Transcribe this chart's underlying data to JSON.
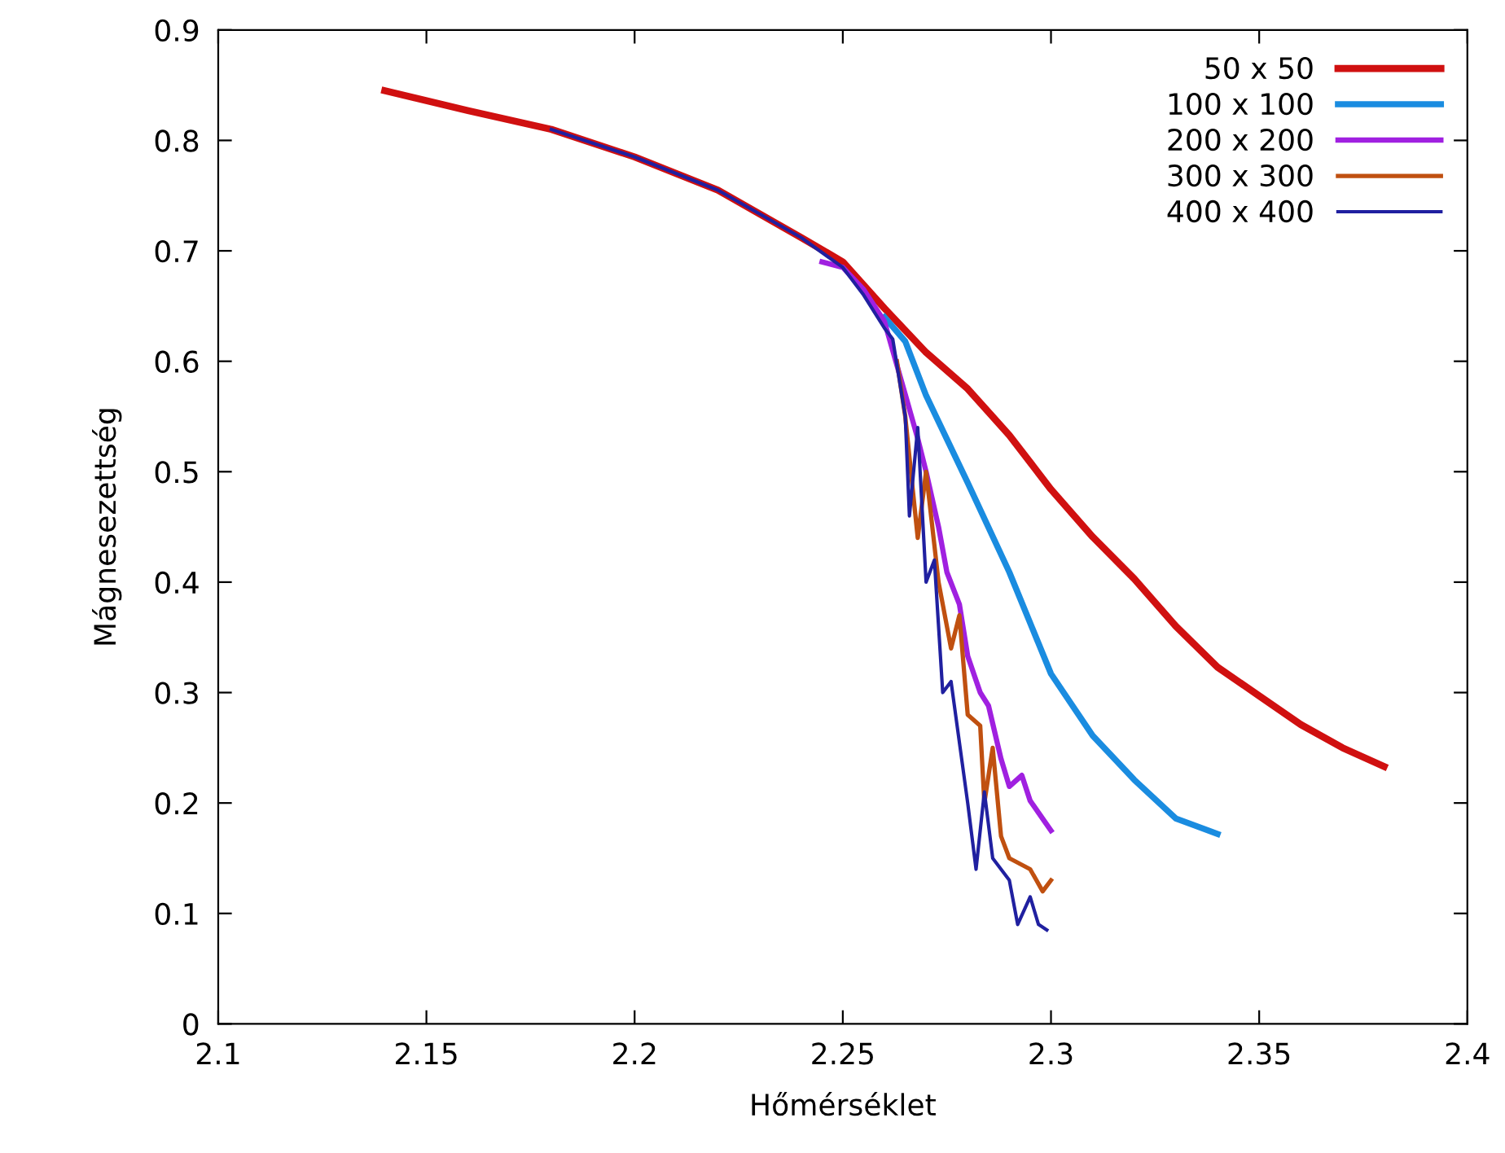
{
  "chart_data": {
    "type": "line",
    "xlabel": "Hőmérséklet",
    "ylabel": "Mágnesezettség",
    "xlim": [
      2.1,
      2.4
    ],
    "ylim": [
      0,
      0.9
    ],
    "xticks": [
      2.1,
      2.15,
      2.2,
      2.25,
      2.3,
      2.35,
      2.4
    ],
    "yticks": [
      0,
      0.1,
      0.2,
      0.3,
      0.4,
      0.5,
      0.6,
      0.7,
      0.8,
      0.9
    ],
    "grid": false,
    "legend": "top right",
    "line_style": "solid",
    "marker": "none",
    "series": [
      {
        "name": "50 x 50",
        "color": "#d01010",
        "x": [
          2.14,
          2.16,
          2.18,
          2.2,
          2.22,
          2.24,
          2.25,
          2.26,
          2.27,
          2.28,
          2.29,
          2.3,
          2.31,
          2.32,
          2.33,
          2.34,
          2.35,
          2.36,
          2.37,
          2.38
        ],
        "values": [
          0.845,
          0.827,
          0.81,
          0.785,
          0.755,
          0.712,
          0.69,
          0.648,
          0.608,
          0.575,
          0.533,
          0.484,
          0.441,
          0.403,
          0.36,
          0.323,
          0.297,
          0.271,
          0.25,
          0.233
        ]
      },
      {
        "name": "100 x 100",
        "color": "#1a8ce0",
        "x": [
          2.26,
          2.265,
          2.27,
          2.28,
          2.29,
          2.3,
          2.31,
          2.32,
          2.33,
          2.34
        ],
        "values": [
          0.64,
          0.618,
          0.569,
          0.49,
          0.409,
          0.317,
          0.261,
          0.221,
          0.186,
          0.172
        ]
      },
      {
        "name": "200 x 200",
        "color": "#a020e0",
        "x": [
          2.245,
          2.25,
          2.255,
          2.26,
          2.265,
          2.268,
          2.27,
          2.273,
          2.275,
          2.278,
          2.28,
          2.283,
          2.285,
          2.288,
          2.29,
          2.293,
          2.295,
          2.3
        ],
        "values": [
          0.69,
          0.685,
          0.665,
          0.636,
          0.57,
          0.53,
          0.5,
          0.45,
          0.409,
          0.38,
          0.333,
          0.3,
          0.288,
          0.24,
          0.215,
          0.225,
          0.202,
          0.175
        ]
      },
      {
        "name": "300 x 300",
        "color": "#c05010",
        "x": [
          2.263,
          2.265,
          2.268,
          2.27,
          2.273,
          2.276,
          2.278,
          2.28,
          2.283,
          2.284,
          2.286,
          2.288,
          2.29,
          2.295,
          2.298,
          2.3
        ],
        "values": [
          0.6,
          0.55,
          0.44,
          0.5,
          0.4,
          0.34,
          0.37,
          0.28,
          0.27,
          0.2,
          0.25,
          0.17,
          0.15,
          0.14,
          0.12,
          0.13
        ]
      },
      {
        "name": "400 x 400",
        "color": "#2020a0",
        "x": [
          2.18,
          2.2,
          2.22,
          2.24,
          2.25,
          2.255,
          2.26,
          2.262,
          2.265,
          2.266,
          2.268,
          2.27,
          2.272,
          2.274,
          2.276,
          2.28,
          2.282,
          2.284,
          2.286,
          2.29,
          2.292,
          2.295,
          2.297,
          2.299
        ],
        "values": [
          0.81,
          0.785,
          0.755,
          0.712,
          0.685,
          0.66,
          0.63,
          0.62,
          0.55,
          0.46,
          0.54,
          0.4,
          0.42,
          0.3,
          0.31,
          0.2,
          0.14,
          0.21,
          0.15,
          0.13,
          0.09,
          0.115,
          0.09,
          0.085
        ]
      }
    ]
  }
}
